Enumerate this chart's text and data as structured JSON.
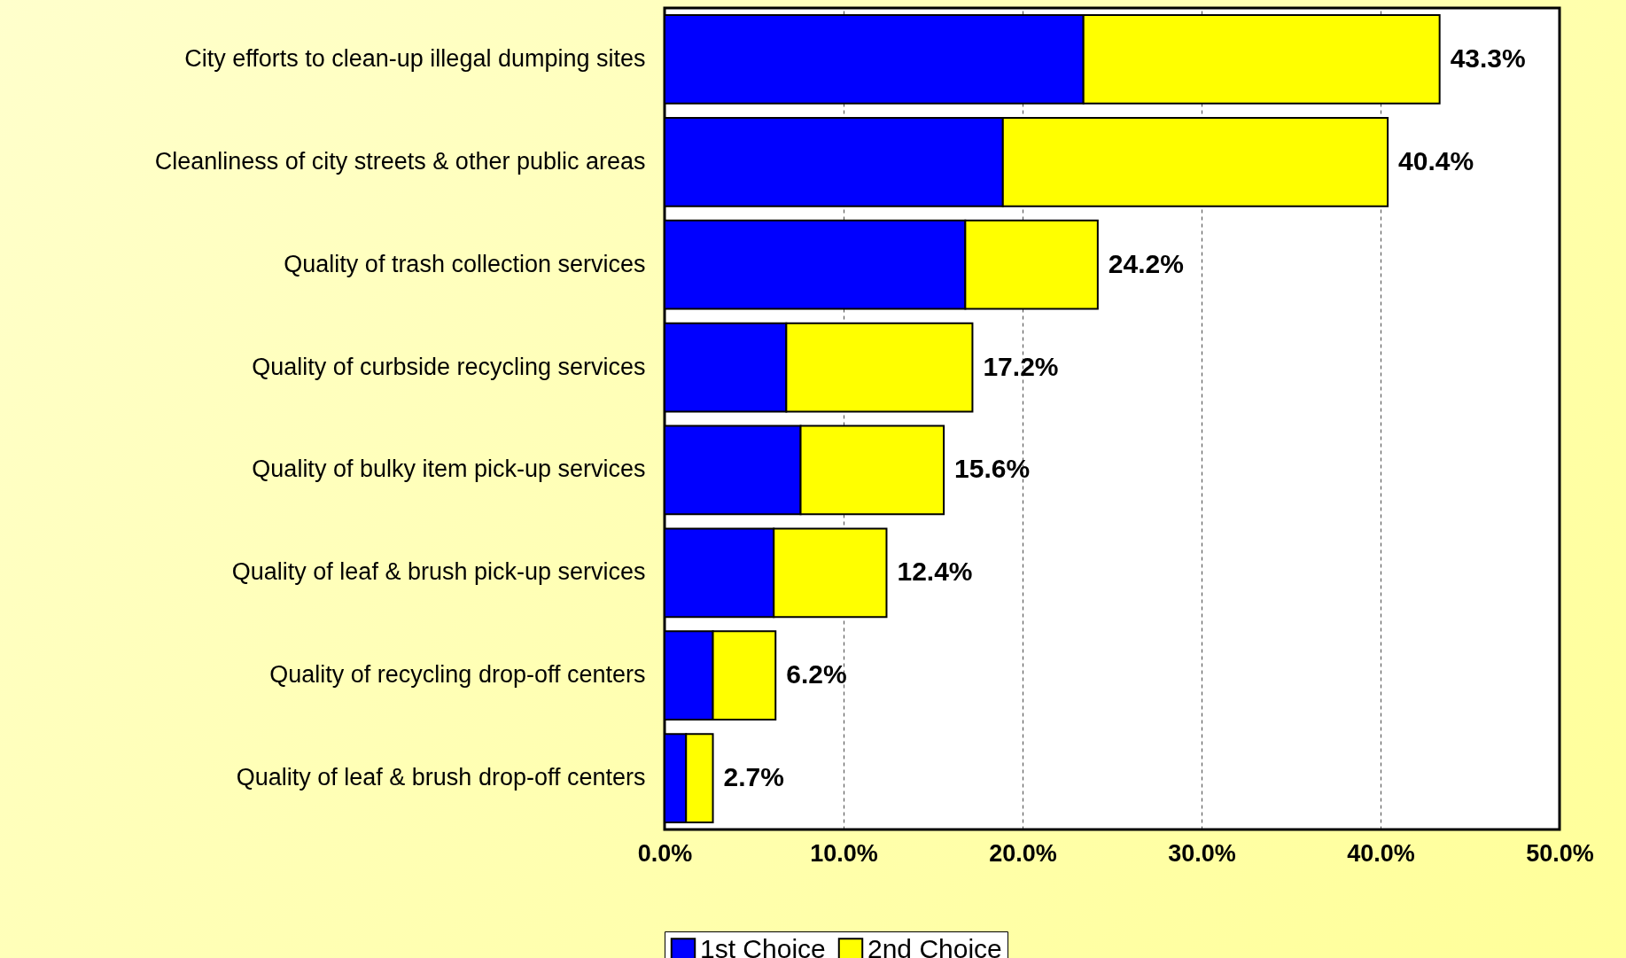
{
  "chart_data": {
    "type": "bar",
    "orientation": "horizontal",
    "stacked": true,
    "categories": [
      "City efforts to clean-up illegal dumping sites",
      "Cleanliness of city streets & other public areas",
      "Quality of trash collection services",
      "Quality of curbside recycling services",
      "Quality of bulky item pick-up services",
      "Quality of leaf & brush pick-up services",
      "Quality of recycling drop-off centers",
      "Quality of leaf & brush drop-off centers"
    ],
    "series": [
      {
        "name": "1st Choice",
        "color": "#0000ff",
        "values": [
          23.4,
          18.9,
          16.8,
          6.8,
          7.6,
          6.1,
          2.7,
          1.2
        ]
      },
      {
        "name": "2nd Choice",
        "color": "#ffff00",
        "values": [
          19.9,
          21.5,
          7.4,
          10.4,
          8.0,
          6.3,
          3.5,
          1.5
        ]
      }
    ],
    "totals": [
      "43.3%",
      "40.4%",
      "24.2%",
      "17.2%",
      "15.6%",
      "12.4%",
      "6.2%",
      "2.7%"
    ],
    "xlim": [
      0,
      50
    ],
    "xticks": [
      {
        "value": 0,
        "label": "0.0%"
      },
      {
        "value": 10,
        "label": "10.0%"
      },
      {
        "value": 20,
        "label": "20.0%"
      },
      {
        "value": 30,
        "label": "30.0%"
      },
      {
        "value": 40,
        "label": "40.0%"
      },
      {
        "value": 50,
        "label": "50.0%"
      }
    ],
    "grid": "x",
    "legend": "bottom"
  }
}
